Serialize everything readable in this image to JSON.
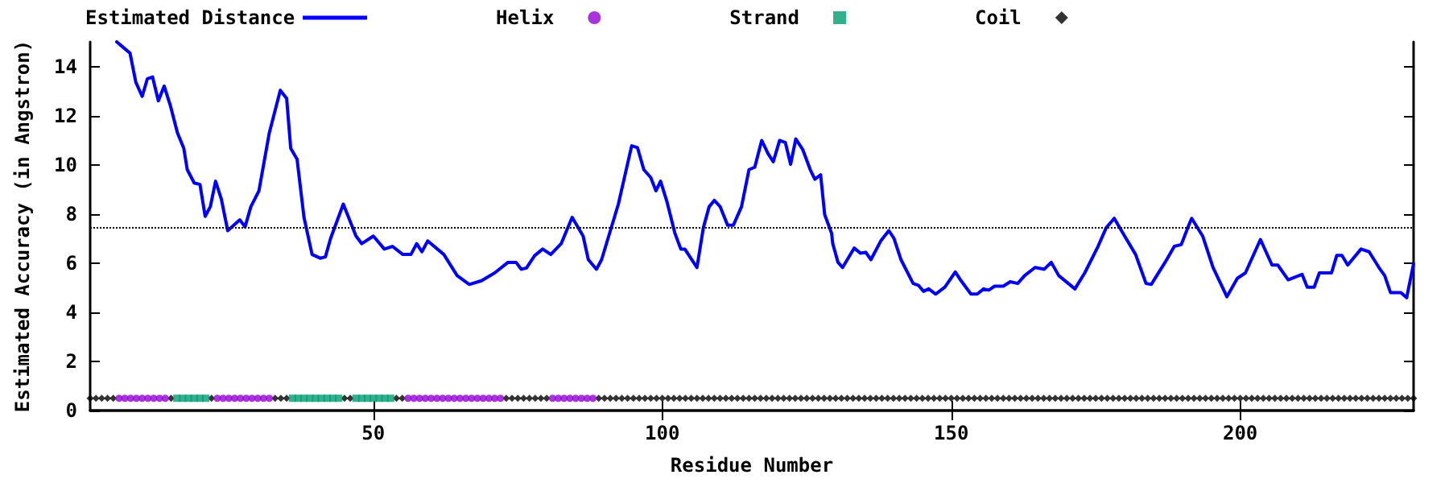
{
  "chart_data": {
    "type": "line",
    "xlabel": "Residue Number",
    "ylabel": "Estimated Accuracy (in Angstron)",
    "xlim": [
      1,
      230
    ],
    "xticks": [
      50,
      100,
      150,
      200
    ],
    "ylim": [
      0,
      15
    ],
    "yticks": [
      0,
      2,
      4,
      6,
      8,
      10,
      12,
      14
    ],
    "grid": false,
    "legend": "top",
    "ref_lines": [
      {
        "axis": "y",
        "value": 7.43,
        "color": "#000000",
        "line_style": "dotted"
      }
    ],
    "series": [
      {
        "name": "Estimated Distance",
        "type": "line",
        "color": "#0000ff",
        "marker": "none",
        "line_style": "solid",
        "x": [
          5.6,
          6.6,
          7.9,
          8.9,
          10,
          10.9,
          11.8,
          12.8,
          13.8,
          14.9,
          16.1,
          17.2,
          17.8,
          19,
          20,
          20.9,
          21.8,
          22.7,
          23.7,
          24.8,
          26.9,
          27.8,
          28.8,
          30.2,
          32,
          33.9,
          35,
          35.7,
          36.8,
          38,
          39.4,
          40.8,
          41.7,
          42.6,
          44.8,
          47,
          48,
          50,
          51.9,
          53.3,
          55.1,
          56.5,
          57.5,
          58.4,
          59.4,
          62.2,
          64.5,
          66.6,
          68.7,
          71,
          73.3,
          74.7,
          75.6,
          76.5,
          77.9,
          79.3,
          80.7,
          82.5,
          84.4,
          86.3,
          87.2,
          88.6,
          89.5,
          92.4,
          94.7,
          95.7,
          96.8,
          98,
          98.9,
          99.7,
          100.8,
          102.2,
          103.2,
          103.9,
          106,
          107.1,
          108.1,
          109,
          110,
          111.3,
          112.3,
          113.7,
          115,
          116,
          117.2,
          118.3,
          119.2,
          120.3,
          121.3,
          122.2,
          123.1,
          124.3,
          125.6,
          126.4,
          127.4,
          128.1,
          129.3,
          129.5,
          130.4,
          131.2,
          133.2,
          134.3,
          135.2,
          136.1,
          137.8,
          139.2,
          140.1,
          141.3,
          143.4,
          144.3,
          145.2,
          146.1,
          147.3,
          148.9,
          150.7,
          151.7,
          153.4,
          154.5,
          155.6,
          156.5,
          157.5,
          159,
          160.2,
          161.5,
          162.7,
          164.5,
          166.1,
          167.3,
          168.6,
          171.4,
          173.1,
          175.4,
          176.8,
          178.2,
          180,
          181.9,
          183.7,
          184.6,
          187,
          188.6,
          189.8,
          191.1,
          191.6,
          193.5,
          195.3,
          197.7,
          199.5,
          200.9,
          203.5,
          205.5,
          206.5,
          208.3,
          210.7,
          211.6,
          212.8,
          213.7,
          215.8,
          216.7,
          217.6,
          218.6,
          220.9,
          222.3,
          224,
          225,
          226,
          227.8,
          228.8,
          230
        ],
        "values": [
          15,
          14.8,
          14.54,
          13.36,
          12.78,
          13.5,
          13.57,
          12.6,
          13.2,
          12.39,
          11.3,
          10.67,
          9.8,
          9.26,
          9.2,
          7.9,
          8.3,
          9.33,
          8.6,
          7.32,
          7.76,
          7.47,
          8.29,
          8.94,
          11.3,
          13.03,
          12.7,
          10.67,
          10.23,
          7.86,
          6.35,
          6.2,
          6.25,
          7,
          8.4,
          7.1,
          6.79,
          7.1,
          6.57,
          6.68,
          6.35,
          6.35,
          6.79,
          6.46,
          6.9,
          6.35,
          5.49,
          5.13,
          5.28,
          5.6,
          6.03,
          6.03,
          5.75,
          5.8,
          6.3,
          6.57,
          6.35,
          6.79,
          7.86,
          7.1,
          6.14,
          5.75,
          6.14,
          8.4,
          10.77,
          10.7,
          9.8,
          9.48,
          8.94,
          9.33,
          8.5,
          7.2,
          6.57,
          6.57,
          5.82,
          7.43,
          8.29,
          8.55,
          8.3,
          7.54,
          7.54,
          8.29,
          9.8,
          9.9,
          10.99,
          10.45,
          10.12,
          10.99,
          10.9,
          10.02,
          11.05,
          10.62,
          9.8,
          9.41,
          9.59,
          7.97,
          7.21,
          6.79,
          6.03,
          5.82,
          6.61,
          6.4,
          6.44,
          6.14,
          6.9,
          7.32,
          7,
          6.14,
          5.17,
          5.1,
          4.85,
          4.95,
          4.74,
          5.02,
          5.64,
          5.28,
          4.74,
          4.74,
          4.95,
          4.9,
          5.06,
          5.06,
          5.24,
          5.17,
          5.49,
          5.82,
          5.75,
          6.03,
          5.49,
          4.95,
          5.6,
          6.68,
          7.43,
          7.82,
          7.1,
          6.35,
          5.17,
          5.13,
          6.03,
          6.68,
          6.75,
          7.54,
          7.82,
          7.1,
          5.82,
          4.63,
          5.38,
          5.6,
          6.96,
          5.92,
          5.92,
          5.32,
          5.54,
          5.02,
          5.02,
          5.6,
          5.6,
          6.31,
          6.31,
          5.92,
          6.57,
          6.46,
          5.82,
          5.49,
          4.8,
          4.8,
          4.59,
          5.97
        ]
      },
      {
        "name": "Helix",
        "type": "scatter",
        "color": "#9400d3",
        "marker": "circle",
        "x": [
          6,
          7,
          8,
          9,
          10,
          11,
          12,
          13,
          14,
          23,
          24,
          25,
          26,
          27,
          28,
          29,
          30,
          31,
          32,
          56,
          57,
          58,
          59,
          60,
          61,
          62,
          63,
          64,
          65,
          66,
          67,
          68,
          69,
          70,
          71,
          72,
          81,
          82,
          83,
          84,
          85,
          86,
          87,
          88
        ],
        "values": [
          0.5,
          0.5,
          0.5,
          0.5,
          0.5,
          0.5,
          0.5,
          0.5,
          0.5,
          0.5,
          0.5,
          0.5,
          0.5,
          0.5,
          0.5,
          0.5,
          0.5,
          0.5,
          0.5,
          0.5,
          0.5,
          0.5,
          0.5,
          0.5,
          0.5,
          0.5,
          0.5,
          0.5,
          0.5,
          0.5,
          0.5,
          0.5,
          0.5,
          0.5,
          0.5,
          0.5,
          0.5,
          0.5,
          0.5,
          0.5,
          0.5,
          0.5,
          0.5,
          0.5
        ]
      },
      {
        "name": "Strand",
        "type": "scatter",
        "color": "#009e73",
        "marker": "square",
        "x": [
          16,
          17,
          18,
          19,
          20,
          21,
          36,
          37,
          38,
          39,
          40,
          41,
          42,
          43,
          44,
          47,
          48,
          49,
          50,
          51,
          52,
          53
        ],
        "values": [
          0.5,
          0.5,
          0.5,
          0.5,
          0.5,
          0.5,
          0.5,
          0.5,
          0.5,
          0.5,
          0.5,
          0.5,
          0.5,
          0.5,
          0.5,
          0.5,
          0.5,
          0.5,
          0.5,
          0.5,
          0.5,
          0.5
        ]
      },
      {
        "name": "Coil",
        "type": "scatter",
        "color": "#000000",
        "marker": "diamond",
        "x": [
          1,
          2,
          3,
          4,
          5,
          15,
          22,
          33,
          34,
          35,
          45,
          46,
          54,
          55,
          73,
          74,
          75,
          76,
          77,
          78,
          79,
          80,
          89,
          90,
          91,
          92,
          93,
          94,
          95,
          96,
          97,
          98,
          99,
          100,
          101,
          102,
          103,
          104,
          105,
          106,
          107,
          108,
          109,
          110,
          111,
          112,
          113,
          114,
          115,
          116,
          117,
          118,
          119,
          120,
          121,
          122,
          123,
          124,
          125,
          126,
          127,
          128,
          129,
          130,
          131,
          132,
          133,
          134,
          135,
          136,
          137,
          138,
          139,
          140,
          141,
          142,
          143,
          144,
          145,
          146,
          147,
          148,
          149,
          150,
          151,
          152,
          153,
          154,
          155,
          156,
          157,
          158,
          159,
          160,
          161,
          162,
          163,
          164,
          165,
          166,
          167,
          168,
          169,
          170,
          171,
          172,
          173,
          174,
          175,
          176,
          177,
          178,
          179,
          180,
          181,
          182,
          183,
          184,
          185,
          186,
          187,
          188,
          189,
          190,
          191,
          192,
          193,
          194,
          195,
          196,
          197,
          198,
          199,
          200,
          201,
          202,
          203,
          204,
          205,
          206,
          207,
          208,
          209,
          210,
          211,
          212,
          213,
          214,
          215,
          216,
          217,
          218,
          219,
          220,
          221,
          222,
          223,
          224,
          225,
          226,
          227,
          228,
          229,
          230
        ],
        "values": [
          0.5,
          0.5,
          0.5,
          0.5,
          0.5,
          0.5,
          0.5,
          0.5,
          0.5,
          0.5,
          0.5,
          0.5,
          0.5,
          0.5,
          0.5,
          0.5,
          0.5,
          0.5,
          0.5,
          0.5,
          0.5,
          0.5,
          0.5,
          0.5,
          0.5,
          0.5,
          0.5,
          0.5,
          0.5,
          0.5,
          0.5,
          0.5,
          0.5,
          0.5,
          0.5,
          0.5,
          0.5,
          0.5,
          0.5,
          0.5,
          0.5,
          0.5,
          0.5,
          0.5,
          0.5,
          0.5,
          0.5,
          0.5,
          0.5,
          0.5,
          0.5,
          0.5,
          0.5,
          0.5,
          0.5,
          0.5,
          0.5,
          0.5,
          0.5,
          0.5,
          0.5,
          0.5,
          0.5,
          0.5,
          0.5,
          0.5,
          0.5,
          0.5,
          0.5,
          0.5,
          0.5,
          0.5,
          0.5,
          0.5,
          0.5,
          0.5,
          0.5,
          0.5,
          0.5,
          0.5,
          0.5,
          0.5,
          0.5,
          0.5,
          0.5,
          0.5,
          0.5,
          0.5,
          0.5,
          0.5,
          0.5,
          0.5,
          0.5,
          0.5,
          0.5,
          0.5,
          0.5,
          0.5,
          0.5,
          0.5,
          0.5,
          0.5,
          0.5,
          0.5,
          0.5,
          0.5,
          0.5,
          0.5,
          0.5,
          0.5,
          0.5,
          0.5,
          0.5,
          0.5,
          0.5,
          0.5,
          0.5,
          0.5,
          0.5,
          0.5,
          0.5,
          0.5,
          0.5,
          0.5,
          0.5,
          0.5,
          0.5,
          0.5,
          0.5,
          0.5,
          0.5,
          0.5,
          0.5,
          0.5,
          0.5,
          0.5,
          0.5,
          0.5,
          0.5,
          0.5,
          0.5,
          0.5,
          0.5,
          0.5,
          0.5,
          0.5,
          0.5,
          0.5,
          0.5,
          0.5,
          0.5,
          0.5,
          0.5,
          0.5,
          0.5,
          0.5,
          0.5,
          0.5,
          0.5,
          0.5,
          0.5,
          0.5,
          0.5,
          0.5
        ]
      }
    ]
  }
}
